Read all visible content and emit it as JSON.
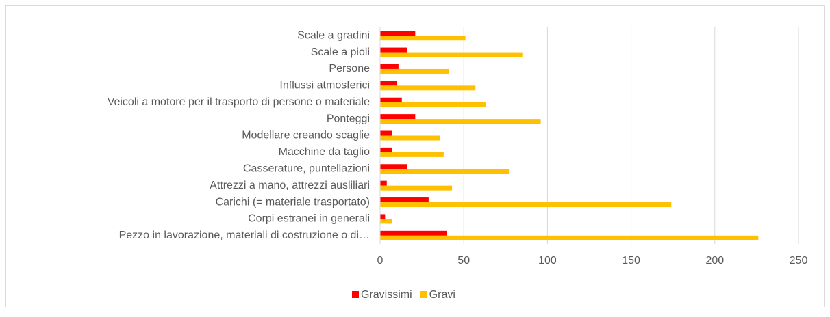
{
  "chart_data": {
    "type": "hbar",
    "categories": [
      "Scale a gradini",
      "Scale a pioli",
      "Persone",
      "Influssi atmosferici",
      "Veicoli a motore per il trasporto di persone o materiale",
      "Ponteggi",
      "Modellare creando scaglie",
      "Macchine da taglio",
      "Casserature, puntellazioni",
      "Attrezzi a mano, attrezzi ausliliari",
      "Carichi (= materiale trasportato)",
      "Corpi estranei in generali",
      "Pezzo in lavorazione, materiali di costruzione o di…"
    ],
    "series": [
      {
        "name": "Gravissimi",
        "color": "#ff0000",
        "values": [
          21,
          16,
          11,
          10,
          13,
          21,
          7,
          7,
          16,
          4,
          29,
          3,
          40
        ]
      },
      {
        "name": "Gravi",
        "color": "#ffc000",
        "values": [
          51,
          85,
          41,
          57,
          63,
          96,
          36,
          38,
          77,
          43,
          174,
          7,
          226
        ]
      }
    ],
    "xlim": [
      0,
      250
    ],
    "xticks": [
      0,
      50,
      100,
      150,
      200,
      250
    ],
    "grid": true,
    "legend": "bottom"
  }
}
